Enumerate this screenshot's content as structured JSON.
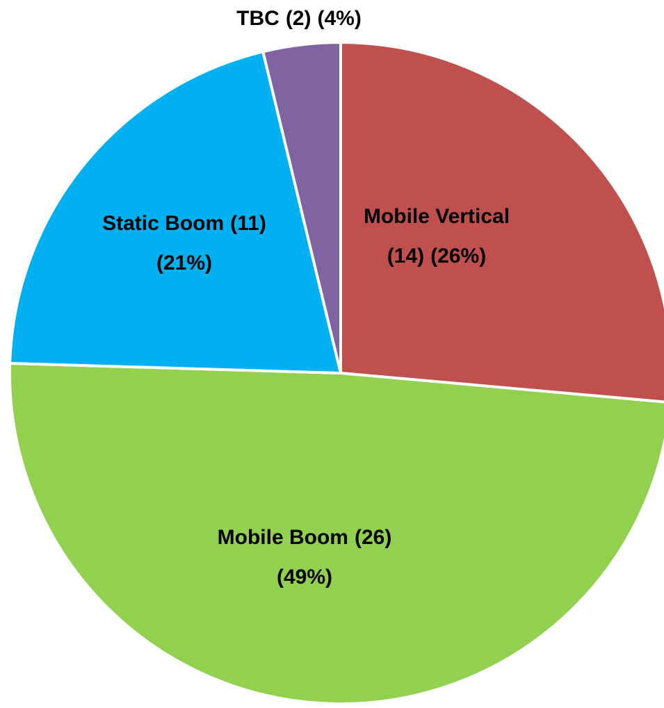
{
  "chart_data": {
    "type": "pie",
    "categories": [
      "Mobile Vertical",
      "Mobile Boom",
      "Static Boom",
      "TBC"
    ],
    "values": [
      14,
      26,
      11,
      2
    ],
    "value_labels": [
      "(14)",
      "(26)",
      "(11)",
      "(2)"
    ],
    "percents": [
      26,
      49,
      21,
      4
    ],
    "percent_labels": [
      "(26%)",
      "(49%)",
      "(21%)",
      "(4%)"
    ],
    "colors": [
      "#c0504d",
      "#92d050",
      "#00b0f0",
      "#8064a2"
    ]
  }
}
